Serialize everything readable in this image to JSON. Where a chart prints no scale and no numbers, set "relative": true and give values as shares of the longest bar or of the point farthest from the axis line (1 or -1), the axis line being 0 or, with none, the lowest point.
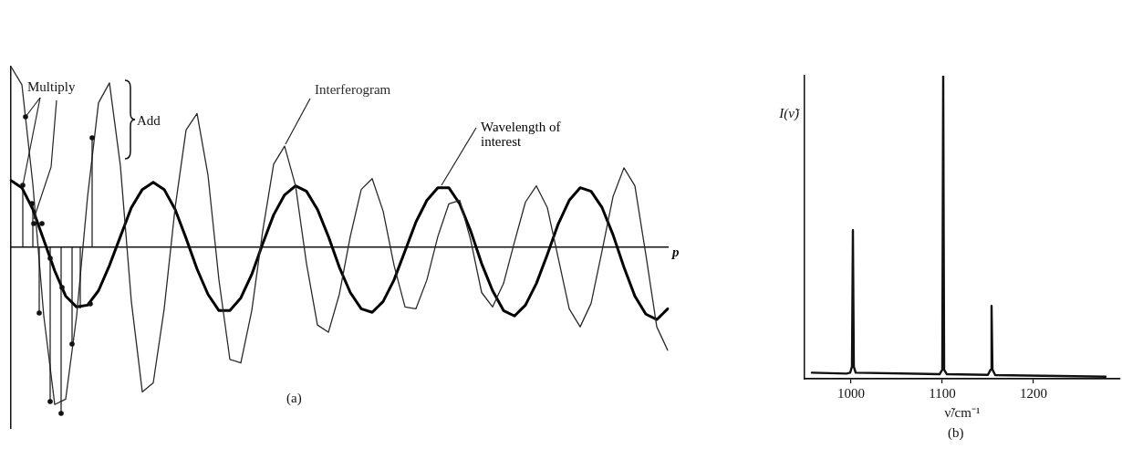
{
  "chart_data": [
    {
      "type": "line",
      "relative": true,
      "xlabel": "p",
      "categories": [
        null,
        null,
        null,
        null,
        null,
        null,
        null,
        null,
        null,
        null,
        null,
        null,
        null,
        null,
        null,
        null,
        null,
        null,
        null,
        null,
        null,
        null,
        null,
        null,
        null,
        null,
        null,
        null,
        null,
        null,
        null,
        null,
        null,
        null,
        null,
        null,
        null,
        null,
        null,
        null,
        null,
        null,
        null,
        null,
        null,
        null,
        null,
        null,
        null,
        null,
        null,
        null,
        null,
        null,
        null,
        null,
        null,
        null,
        null,
        null,
        null
      ],
      "series": [
        {
          "name": "Interferogram",
          "color": "#2a2a2a",
          "values": [
            1.0,
            0.9,
            0.35,
            -0.38,
            -0.87,
            -0.84,
            -0.38,
            0.28,
            0.8,
            0.91,
            0.45,
            -0.3,
            -0.8,
            -0.75,
            -0.34,
            0.22,
            0.65,
            0.74,
            0.4,
            -0.18,
            -0.62,
            -0.64,
            -0.35,
            0.09,
            0.46,
            0.56,
            0.34,
            -0.09,
            -0.43,
            -0.47,
            -0.26,
            0.06,
            0.32,
            0.38,
            0.2,
            -0.1,
            -0.33,
            -0.34,
            -0.18,
            0.06,
            0.24,
            0.26,
            0.04,
            -0.25,
            -0.33,
            -0.2,
            0.03,
            0.25,
            0.34,
            0.22,
            -0.06,
            -0.34,
            -0.44,
            -0.31,
            -0.02,
            0.28,
            0.44,
            0.34,
            -0.04,
            -0.44,
            -0.57
          ]
        },
        {
          "name": "Wavelength of interest",
          "color": "#000000",
          "values": [
            0.37,
            0.33,
            0.21,
            0.04,
            -0.13,
            -0.27,
            -0.33,
            -0.32,
            -0.24,
            -0.1,
            0.06,
            0.22,
            0.32,
            0.36,
            0.32,
            0.21,
            0.05,
            -0.12,
            -0.26,
            -0.35,
            -0.35,
            -0.28,
            -0.15,
            0.02,
            0.18,
            0.29,
            0.34,
            0.31,
            0.21,
            0.06,
            -0.11,
            -0.25,
            -0.34,
            -0.36,
            -0.3,
            -0.18,
            -0.02,
            0.14,
            0.26,
            0.33,
            0.33,
            0.24,
            0.09,
            -0.09,
            -0.24,
            -0.35,
            -0.38,
            -0.32,
            -0.2,
            -0.04,
            0.13,
            0.26,
            0.33,
            0.31,
            0.22,
            0.07,
            -0.11,
            -0.27,
            -0.37,
            -0.4,
            -0.34
          ]
        }
      ],
      "annotations": [
        "Multiply",
        "Add",
        "(a)"
      ]
    },
    {
      "type": "line",
      "relative": true,
      "xlabel": "ν̃/cm⁻¹",
      "ylabel": "I(ν̃)",
      "xlim": [
        949,
        1295
      ],
      "xticks": [
        1000,
        1100,
        1200
      ],
      "x": [
        957,
        995,
        999,
        1001,
        1002,
        1003,
        1005,
        1097,
        1100,
        1101,
        1102,
        1105,
        1150,
        1153,
        1154,
        1155,
        1158,
        1279
      ],
      "values": [
        0.02,
        0.017,
        0.02,
        0.04,
        0.49,
        0.04,
        0.02,
        0.015,
        0.03,
        1,
        0.03,
        0.015,
        0.013,
        0.03,
        0.24,
        0.03,
        0.012,
        0.007
      ],
      "color": "#111111",
      "annotations": [
        "(b)"
      ]
    }
  ]
}
